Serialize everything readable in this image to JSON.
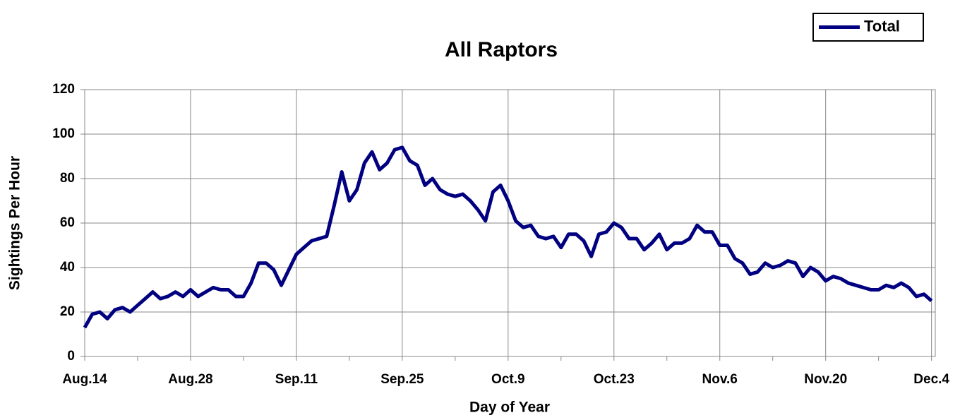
{
  "chart_data": {
    "type": "line",
    "title": "All Raptors",
    "x_label": "Day of Year",
    "y_label": "Sightings Per Hour",
    "x": [
      0,
      1,
      2,
      3,
      4,
      5,
      6,
      7,
      8,
      9,
      10,
      11,
      12,
      13,
      14,
      15,
      16,
      17,
      18,
      19,
      20,
      21,
      22,
      23,
      24,
      25,
      26,
      27,
      28,
      29,
      30,
      31,
      32,
      33,
      34,
      35,
      36,
      37,
      38,
      39,
      40,
      41,
      42,
      43,
      44,
      45,
      46,
      47,
      48,
      49,
      50,
      51,
      52,
      53,
      54,
      55,
      56,
      57,
      58,
      59,
      60,
      61,
      62,
      63,
      64,
      65,
      66,
      67,
      68,
      69,
      70,
      71,
      72,
      73,
      74,
      75,
      76,
      77,
      78,
      79,
      80,
      81,
      82,
      83,
      84,
      85,
      86,
      87,
      88,
      89,
      90,
      91,
      92,
      93,
      94,
      95,
      96,
      97,
      98,
      99,
      100,
      101,
      102,
      103,
      104,
      105,
      106,
      107,
      108,
      109,
      110,
      111,
      112
    ],
    "series": [
      {
        "name": "Total",
        "color": "#000080",
        "values": [
          13,
          19,
          20,
          17,
          21,
          22,
          20,
          23,
          26,
          29,
          26,
          27,
          29,
          27,
          30,
          27,
          29,
          31,
          30,
          30,
          27,
          27,
          33,
          42,
          42,
          39,
          32,
          39,
          46,
          49,
          52,
          53,
          54,
          68,
          83,
          70,
          75,
          87,
          92,
          84,
          87,
          93,
          94,
          88,
          86,
          77,
          80,
          75,
          73,
          72,
          73,
          70,
          66,
          61,
          74,
          77,
          70,
          61,
          58,
          59,
          54,
          53,
          54,
          49,
          55,
          55,
          52,
          45,
          55,
          56,
          60,
          58,
          53,
          53,
          48,
          51,
          55,
          48,
          51,
          51,
          53,
          59,
          56,
          56,
          50,
          50,
          44,
          42,
          37,
          38,
          42,
          40,
          41,
          43,
          42,
          36,
          40,
          38,
          34,
          36,
          35,
          33,
          32,
          31,
          30,
          30,
          32,
          31,
          33,
          31,
          27,
          28,
          25
        ]
      }
    ],
    "xlim": [
      0,
      112.5
    ],
    "xticks": [
      {
        "value": 0,
        "label": "Aug.14"
      },
      {
        "value": 14,
        "label": "Aug.28"
      },
      {
        "value": 28,
        "label": "Sep.11"
      },
      {
        "value": 42,
        "label": "Sep.25"
      },
      {
        "value": 56,
        "label": "Oct.9"
      },
      {
        "value": 70,
        "label": "Oct.23"
      },
      {
        "value": 84,
        "label": "Nov.6"
      },
      {
        "value": 98,
        "label": "Nov.20"
      },
      {
        "value": 112,
        "label": "Dec.4"
      }
    ],
    "xminorticks": [
      7,
      21,
      35,
      49,
      63,
      77,
      91,
      105
    ],
    "ylim": [
      0,
      120
    ],
    "yticks": [
      0,
      20,
      40,
      60,
      80,
      100,
      120
    ],
    "grid": true,
    "legend": "top-right"
  }
}
